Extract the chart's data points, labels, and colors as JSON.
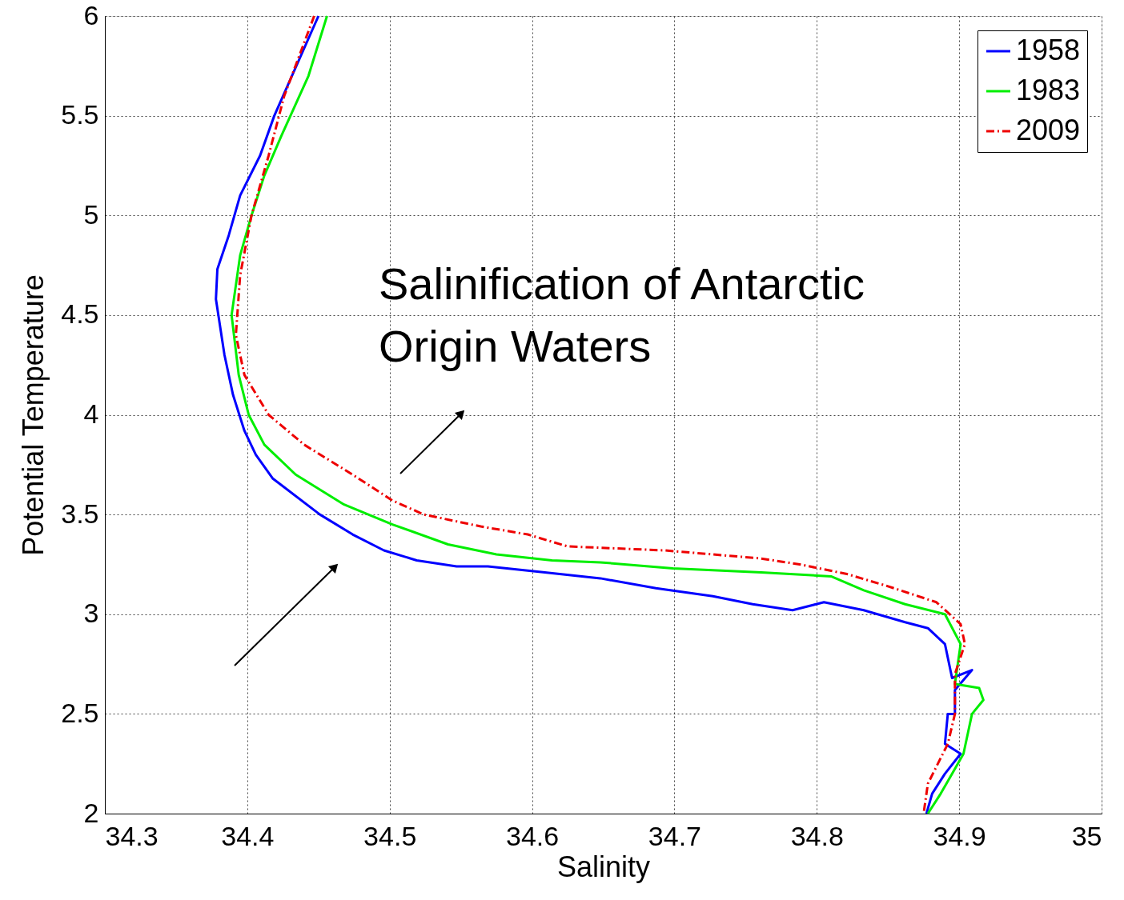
{
  "chart_data": {
    "type": "line",
    "xlabel": "Salinity",
    "ylabel": "Potential Temperature",
    "xlim": [
      34.3,
      35
    ],
    "xticks": [
      34.3,
      34.4,
      34.5,
      34.6,
      34.7,
      34.8,
      34.9,
      35
    ],
    "ylim": [
      2,
      6
    ],
    "yticks": [
      2,
      2.5,
      3,
      3.5,
      4,
      4.5,
      5,
      5.5,
      6
    ],
    "grid": true,
    "legend": "top right",
    "marker": "none",
    "annotations": [
      "Salinification of Antarctic\nOrigin Waters"
    ],
    "series": [
      {
        "name": "1958",
        "color": "#0000ff",
        "line_style": "solid",
        "x": [
          34.45,
          34.419,
          34.409,
          34.395,
          34.387,
          34.379,
          34.378,
          34.384,
          34.39,
          34.398,
          34.406,
          34.418,
          34.451,
          34.474,
          34.496,
          34.519,
          34.547,
          34.569,
          34.609,
          34.648,
          34.687,
          34.727,
          34.755,
          34.783,
          34.805,
          34.833,
          34.862,
          34.878,
          34.89,
          34.895,
          34.909,
          34.897,
          34.897,
          34.892,
          34.89,
          34.901,
          34.89,
          34.881,
          34.877
        ],
        "values": [
          6,
          5.5,
          5.3,
          5.1,
          4.9,
          4.73,
          4.58,
          4.3,
          4.1,
          3.92,
          3.8,
          3.68,
          3.5,
          3.4,
          3.32,
          3.27,
          3.24,
          3.24,
          3.21,
          3.18,
          3.13,
          3.09,
          3.05,
          3.02,
          3.06,
          3.02,
          2.96,
          2.93,
          2.85,
          2.68,
          2.72,
          2.62,
          2.5,
          2.5,
          2.35,
          2.3,
          2.2,
          2.1,
          2.0
        ]
      },
      {
        "name": "1983",
        "color": "#00ee00",
        "line_style": "solid",
        "x": [
          34.456,
          34.443,
          34.424,
          34.412,
          34.403,
          34.395,
          34.389,
          34.394,
          34.401,
          34.412,
          34.434,
          34.468,
          34.502,
          34.541,
          34.575,
          34.614,
          34.648,
          34.699,
          34.761,
          34.81,
          34.833,
          34.862,
          34.89,
          34.901,
          34.897,
          34.914,
          34.917,
          34.909,
          34.903,
          34.895,
          34.887,
          34.878
        ],
        "values": [
          6,
          5.7,
          5.4,
          5.2,
          5.0,
          4.8,
          4.5,
          4.2,
          4.0,
          3.85,
          3.7,
          3.55,
          3.45,
          3.35,
          3.3,
          3.27,
          3.26,
          3.23,
          3.21,
          3.19,
          3.12,
          3.05,
          3.0,
          2.85,
          2.65,
          2.63,
          2.57,
          2.5,
          2.3,
          2.2,
          2.1,
          2.0
        ]
      },
      {
        "name": "2009",
        "color": "#ee0000",
        "line_style": "dashed",
        "x": [
          34.447,
          34.426,
          34.415,
          34.403,
          34.395,
          34.392,
          34.398,
          34.415,
          34.44,
          34.474,
          34.502,
          34.524,
          34.564,
          34.597,
          34.625,
          34.693,
          34.76,
          34.788,
          34.822,
          34.85,
          34.884,
          34.901,
          34.904,
          34.897,
          34.897,
          34.892,
          34.878,
          34.875
        ],
        "values": [
          6,
          5.6,
          5.3,
          5.0,
          4.7,
          4.4,
          4.2,
          4.0,
          3.85,
          3.7,
          3.57,
          3.5,
          3.44,
          3.4,
          3.34,
          3.32,
          3.28,
          3.25,
          3.2,
          3.14,
          3.06,
          2.95,
          2.85,
          2.7,
          2.5,
          2.35,
          2.15,
          2.0
        ]
      }
    ]
  }
}
